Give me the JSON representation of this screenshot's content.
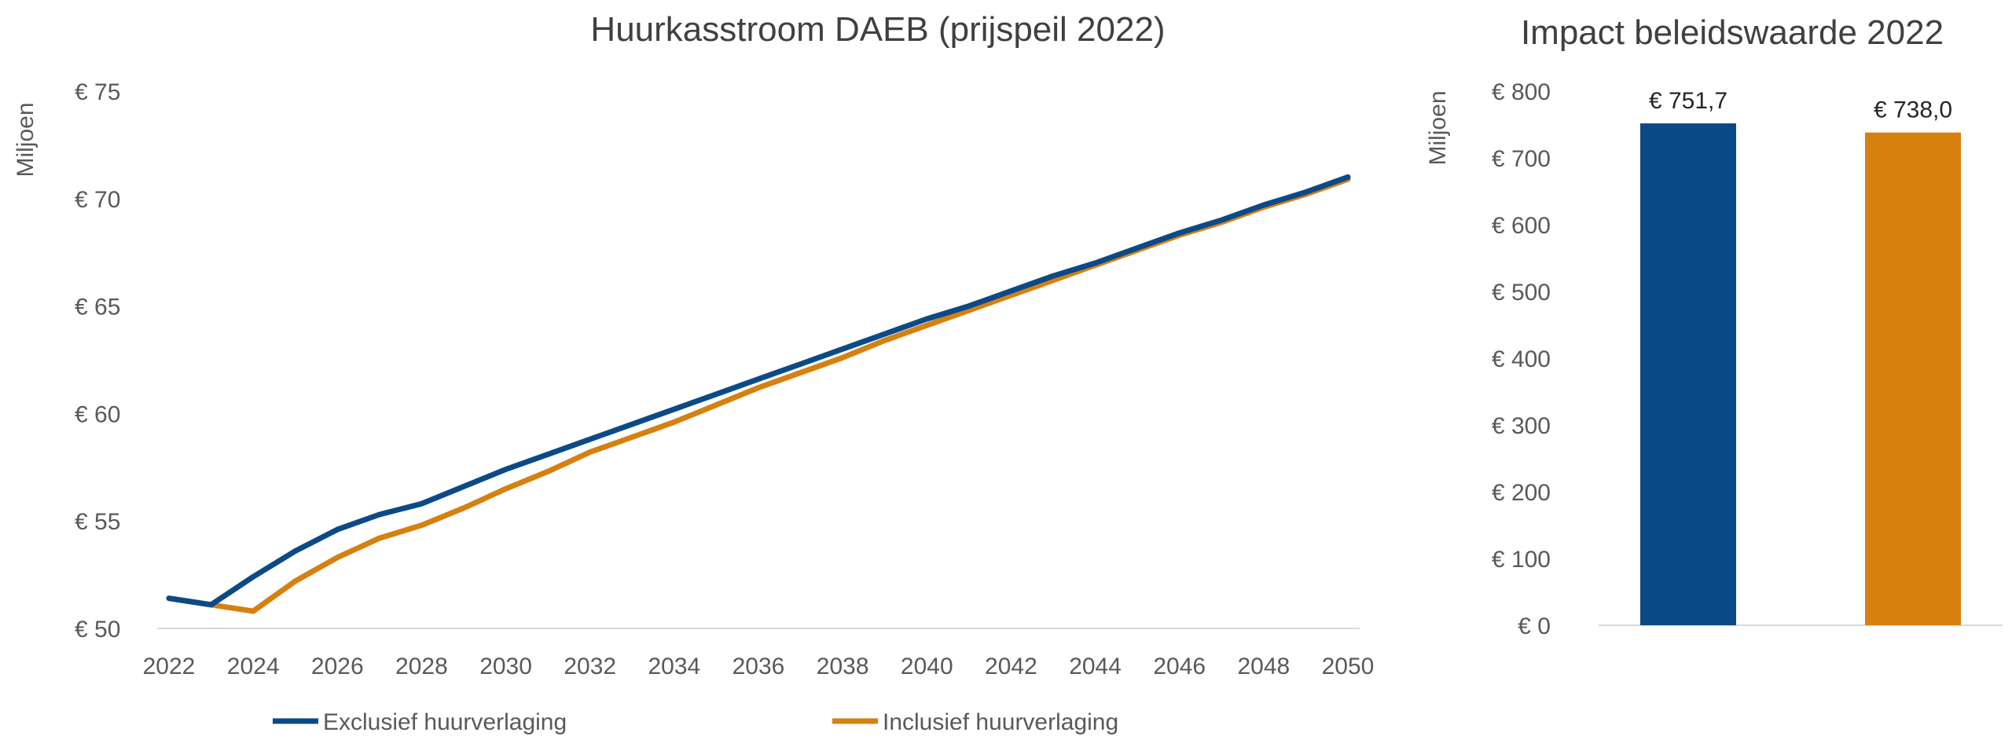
{
  "colors": {
    "excl": "#0B4A86",
    "incl": "#D68010",
    "axis": "#D9D9D9",
    "text": "#595959",
    "title": "#404040",
    "label": "#262626"
  },
  "chart_data": [
    {
      "type": "line",
      "title": "Huurkasstroom DAEB (prijspeil 2022)",
      "ylabel": "Miljoen",
      "ylim": [
        50,
        75
      ],
      "xlim": [
        2022,
        2050
      ],
      "yticks": [
        50,
        55,
        60,
        65,
        70,
        75
      ],
      "ytick_labels": [
        "€ 50",
        "€ 55",
        "€ 60",
        "€ 65",
        "€ 70",
        "€ 75"
      ],
      "xticks": [
        2022,
        2024,
        2026,
        2028,
        2030,
        2032,
        2034,
        2036,
        2038,
        2040,
        2042,
        2044,
        2046,
        2048,
        2050
      ],
      "xtick_labels": [
        "2022",
        "2024",
        "2026",
        "2028",
        "2030",
        "2032",
        "2034",
        "2036",
        "2038",
        "2040",
        "2042",
        "2044",
        "2046",
        "2048",
        "2050"
      ],
      "grid": false,
      "legend_position": "bottom",
      "x": [
        2022,
        2023,
        2024,
        2025,
        2026,
        2027,
        2028,
        2029,
        2030,
        2031,
        2032,
        2033,
        2034,
        2035,
        2036,
        2037,
        2038,
        2039,
        2040,
        2041,
        2042,
        2043,
        2044,
        2045,
        2046,
        2047,
        2048,
        2049,
        2050
      ],
      "series": [
        {
          "name": "Exclusief huurverlaging",
          "color": "#0B4A86",
          "values": [
            51.4,
            51.1,
            52.4,
            53.6,
            54.6,
            55.3,
            55.8,
            56.6,
            57.4,
            58.1,
            58.8,
            59.5,
            60.2,
            60.9,
            61.6,
            62.3,
            63.0,
            63.7,
            64.4,
            65.0,
            65.7,
            66.4,
            67.0,
            67.7,
            68.4,
            69.0,
            69.7,
            70.3,
            71.0
          ]
        },
        {
          "name": "Inclusief huurverlaging",
          "color": "#D68010",
          "values": [
            51.4,
            51.1,
            50.8,
            52.2,
            53.3,
            54.2,
            54.8,
            55.6,
            56.5,
            57.3,
            58.2,
            58.9,
            59.6,
            60.4,
            61.2,
            61.9,
            62.6,
            63.4,
            64.1,
            64.8,
            65.5,
            66.2,
            66.9,
            67.6,
            68.3,
            68.9,
            69.6,
            70.2,
            70.9
          ]
        }
      ]
    },
    {
      "type": "bar",
      "title": "Impact beleidswaarde 2022",
      "ylabel": "Miljoen",
      "ylim": [
        0,
        800
      ],
      "yticks": [
        0,
        100,
        200,
        300,
        400,
        500,
        600,
        700,
        800
      ],
      "ytick_labels": [
        "€ 0",
        "€ 100",
        "€ 200",
        "€ 300",
        "€ 400",
        "€ 500",
        "€ 600",
        "€ 700",
        "€ 800"
      ],
      "grid": false,
      "values": [
        751.7,
        738.0
      ],
      "value_labels": [
        "€ 751,7",
        "€ 738,0"
      ],
      "colors": [
        "#0B4A86",
        "#D68010"
      ]
    }
  ]
}
